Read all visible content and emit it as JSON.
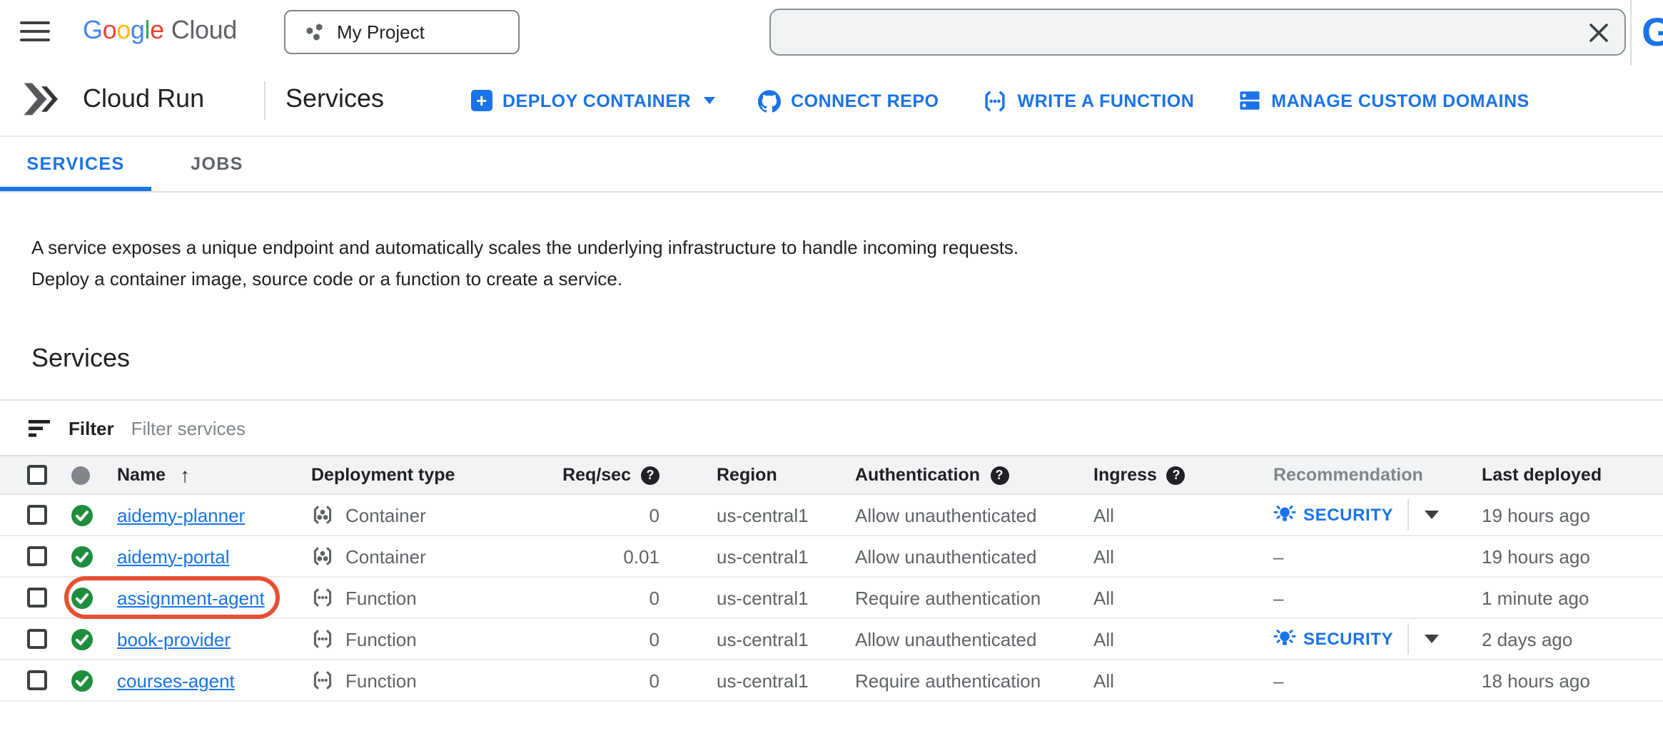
{
  "topbar": {
    "logo": {
      "google_letters": [
        [
          "G",
          "#4285F4"
        ],
        [
          "o",
          "#EA4335"
        ],
        [
          "o",
          "#FBBC05"
        ],
        [
          "g",
          "#4285F4"
        ],
        [
          "l",
          "#34A853"
        ],
        [
          "e",
          "#EA4335"
        ]
      ],
      "cloud": "Cloud"
    },
    "project_selector": "My Project",
    "search_value": "",
    "partial_glyph": "G"
  },
  "header": {
    "product": "Cloud Run",
    "page": "Services",
    "actions": [
      {
        "label": "DEPLOY CONTAINER"
      },
      {
        "label": "CONNECT REPO"
      },
      {
        "label": "WRITE A FUNCTION"
      },
      {
        "label": "MANAGE CUSTOM DOMAINS"
      }
    ]
  },
  "tabs": [
    {
      "label": "SERVICES",
      "active": true
    },
    {
      "label": "JOBS",
      "active": false
    }
  ],
  "description": {
    "line1": "A service exposes a unique endpoint and automatically scales the underlying infrastructure to handle incoming requests.",
    "line2": "Deploy a container image, source code or a function to create a service."
  },
  "section_title": "Services",
  "filter": {
    "label": "Filter",
    "placeholder": "Filter services"
  },
  "table": {
    "headers": {
      "name": "Name",
      "deployment": "Deployment type",
      "req_sec": "Req/sec",
      "region": "Region",
      "authentication": "Authentication",
      "ingress": "Ingress",
      "recommendation": "Recommendation",
      "last_deployed": "Last deployed"
    },
    "rows": [
      {
        "name": "aidemy-planner",
        "deployment_type": "Container",
        "req_sec": "0",
        "region": "us-central1",
        "authentication": "Allow unauthenticated",
        "ingress": "All",
        "recommendation": "SECURITY",
        "last_deployed": "19 hours ago"
      },
      {
        "name": "aidemy-portal",
        "deployment_type": "Container",
        "req_sec": "0.01",
        "region": "us-central1",
        "authentication": "Allow unauthenticated",
        "ingress": "All",
        "recommendation": "–",
        "last_deployed": "19 hours ago"
      },
      {
        "name": "assignment-agent",
        "deployment_type": "Function",
        "req_sec": "0",
        "region": "us-central1",
        "authentication": "Require authentication",
        "ingress": "All",
        "recommendation": "–",
        "last_deployed": "1 minute ago"
      },
      {
        "name": "book-provider",
        "deployment_type": "Function",
        "req_sec": "0",
        "region": "us-central1",
        "authentication": "Allow unauthenticated",
        "ingress": "All",
        "recommendation": "SECURITY",
        "last_deployed": "2 days ago"
      },
      {
        "name": "courses-agent",
        "deployment_type": "Function",
        "req_sec": "0",
        "region": "us-central1",
        "authentication": "Require authentication",
        "ingress": "All",
        "recommendation": "–",
        "last_deployed": "18 hours ago"
      }
    ]
  },
  "annotation": {
    "shape": "rounded-oval",
    "target": "assignment-agent",
    "color": "#e65032"
  },
  "colors": {
    "accent_blue": "#1a73e8",
    "success_green": "#1e8e3e",
    "annotation_red": "#e65032",
    "table_header_bg": "#f1f3f4",
    "text_primary": "#202124",
    "text_secondary": "#5f6368",
    "placeholder_gray": "#80868b"
  }
}
